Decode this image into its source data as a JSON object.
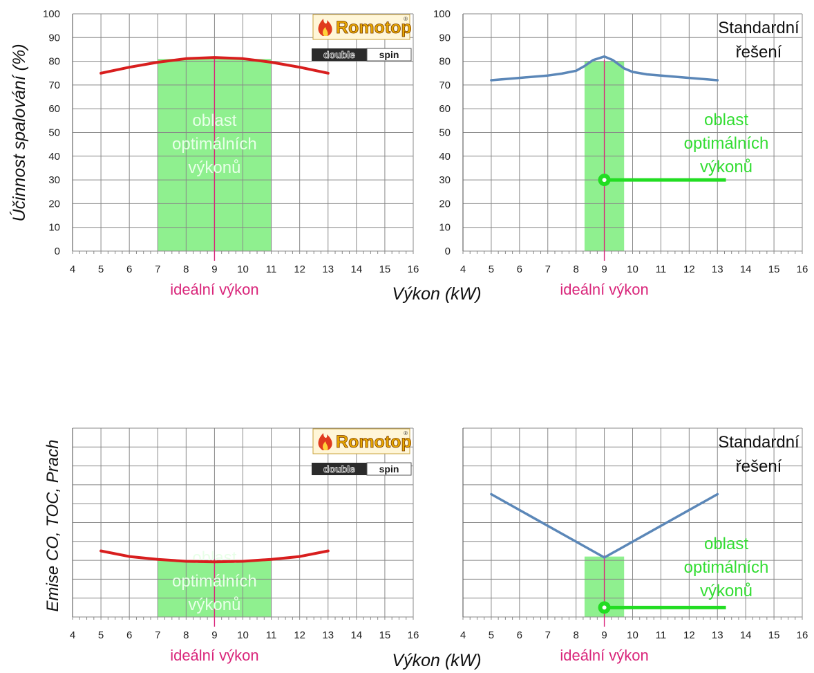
{
  "colors": {
    "grid": "#888888",
    "romotop_series": "#d81e1e",
    "standard_series": "#5b87b8",
    "optimal_fill": "#8ff08f",
    "optimal_text_light": "#e8ffe8",
    "optimal_text_green": "#33dd33",
    "marker_green": "#22dd22",
    "ideal_accent": "#d9257a"
  },
  "labels": {
    "ylabel_top": "Účinnost spalování  (%)",
    "ylabel_bottom": "Emise CO, TOC, Prach",
    "xlabel_top": "Výkon  (kW)",
    "xlabel_bottom": "Výkon  (kW)",
    "ideal": "ideální výkon",
    "optimal_lines": [
      "oblast",
      "optimálních",
      "výkonů"
    ],
    "standard_lines": [
      "Standardní",
      "řešení"
    ],
    "logo_brand": "Romotop",
    "logo_registered": "®",
    "logo_double": "double",
    "logo_spin": "spin"
  },
  "chart_data": [
    {
      "type": "line",
      "panel": "top-left",
      "xlim": [
        4,
        16
      ],
      "ylim": [
        0,
        100
      ],
      "x_ticks": [
        4,
        5,
        6,
        7,
        8,
        9,
        10,
        11,
        12,
        13,
        14,
        15,
        16
      ],
      "y_ticks": [
        0,
        10,
        20,
        30,
        40,
        50,
        60,
        70,
        80,
        90,
        100
      ],
      "show_y_tick_labels": true,
      "grid": true,
      "series": [
        {
          "x": [
            5,
            6,
            7,
            8,
            9,
            10,
            11,
            12,
            13
          ],
          "y": [
            75,
            77.5,
            79.6,
            81.1,
            81.6,
            81.1,
            79.6,
            77.5,
            75
          ]
        }
      ],
      "optimal_region": [
        7,
        11
      ],
      "optimal_region_top": 81,
      "ideal_x": 9,
      "has_logo": true,
      "has_standard_label": false,
      "has_marker": false
    },
    {
      "type": "line",
      "panel": "top-right",
      "xlim": [
        4,
        16
      ],
      "ylim": [
        0,
        100
      ],
      "x_ticks": [
        4,
        5,
        6,
        7,
        8,
        9,
        10,
        11,
        12,
        13,
        14,
        15,
        16
      ],
      "y_ticks": [
        0,
        10,
        20,
        30,
        40,
        50,
        60,
        70,
        80,
        90,
        100
      ],
      "show_y_tick_labels": true,
      "grid": true,
      "series": [
        {
          "x": [
            5,
            6,
            7,
            7.5,
            8,
            8.3,
            8.6,
            9,
            9.3,
            9.7,
            10,
            10.5,
            11,
            12,
            13
          ],
          "y": [
            72,
            73,
            74,
            74.8,
            76,
            78,
            80.5,
            82,
            80.5,
            77,
            75.5,
            74.5,
            74,
            73,
            72
          ]
        }
      ],
      "optimal_region": [
        8.3,
        9.7
      ],
      "optimal_region_top": 80,
      "ideal_x": 9,
      "has_logo": false,
      "has_standard_label": true,
      "has_marker": true,
      "marker": {
        "x": 9,
        "y": 30,
        "x_end": 13.3
      }
    },
    {
      "type": "line",
      "panel": "bottom-left",
      "xlim": [
        4,
        16
      ],
      "ylim": [
        0,
        10
      ],
      "x_ticks": [
        4,
        5,
        6,
        7,
        8,
        9,
        10,
        11,
        12,
        13,
        14,
        15,
        16
      ],
      "y_ticks": [
        0,
        1,
        2,
        3,
        4,
        5,
        6,
        7,
        8,
        9,
        10
      ],
      "show_y_tick_labels": false,
      "grid": true,
      "series": [
        {
          "x": [
            5,
            6,
            7,
            8,
            9,
            10,
            11,
            12,
            13
          ],
          "y": [
            3.5,
            3.2,
            3.05,
            2.95,
            2.92,
            2.95,
            3.05,
            3.2,
            3.5
          ]
        }
      ],
      "optimal_region": [
        7,
        11
      ],
      "optimal_region_top": 3,
      "ideal_x": 9,
      "has_logo": true,
      "has_standard_label": false,
      "has_marker": false
    },
    {
      "type": "line",
      "panel": "bottom-right",
      "xlim": [
        4,
        16
      ],
      "ylim": [
        0,
        10
      ],
      "x_ticks": [
        4,
        5,
        6,
        7,
        8,
        9,
        10,
        11,
        12,
        13,
        14,
        15,
        16
      ],
      "y_ticks": [
        0,
        1,
        2,
        3,
        4,
        5,
        6,
        7,
        8,
        9,
        10
      ],
      "show_y_tick_labels": false,
      "grid": true,
      "series": [
        {
          "x": [
            5,
            9,
            13
          ],
          "y": [
            6.5,
            3.15,
            6.5
          ]
        }
      ],
      "optimal_region": [
        8.3,
        9.7
      ],
      "optimal_region_top": 3.2,
      "ideal_x": 9,
      "has_logo": false,
      "has_standard_label": true,
      "has_marker": true,
      "marker": {
        "x": 9,
        "y": 0.5,
        "x_end": 13.3
      }
    }
  ]
}
